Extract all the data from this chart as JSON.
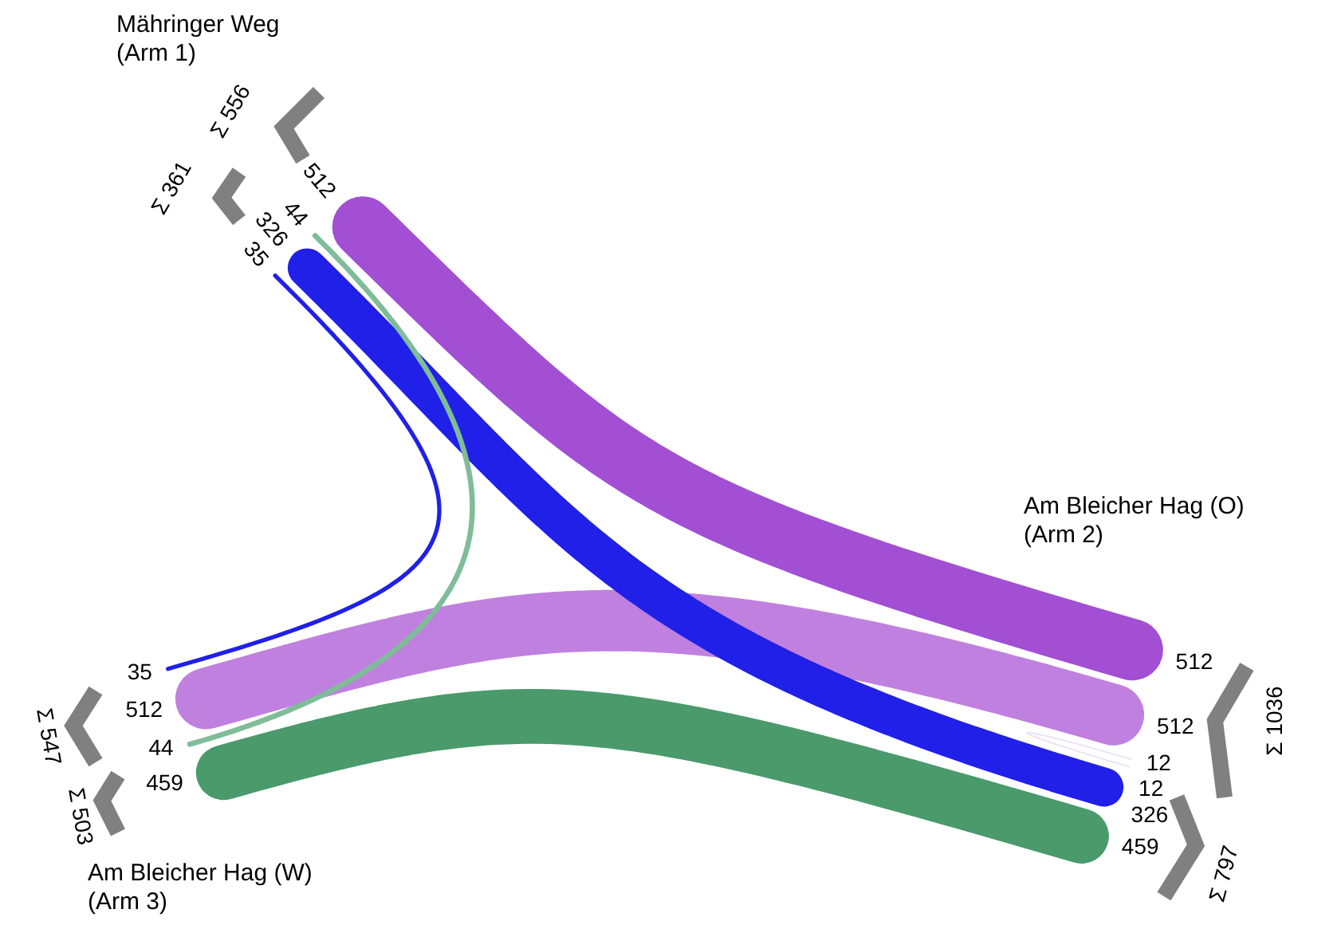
{
  "chart_data": {
    "type": "other",
    "categories": [
      "Mähringer Weg\n(Arm 1)",
      "Am Bleicher Hag (O)\n(Arm 2)",
      "Am Bleicher Hag (W)\n(Arm 3)"
    ],
    "series": [
      {
        "values": [
          null,
          512,
          44
        ],
        "colors": [
          null,
          "#a24fd4",
          "#7fbd98"
        ]
      },
      {
        "values": [
          326,
          12,
          459
        ],
        "colors": [
          "#2020e8",
          "#ecdff5",
          "#4a9a6b"
        ]
      },
      {
        "values": [
          35,
          512,
          null
        ],
        "colors": [
          "#2020e8",
          "#c080e0",
          null
        ]
      }
    ],
    "data_labels": true,
    "annotations": [
      "Σ 556",
      "Σ 361",
      "Σ 1036",
      "Σ 797",
      "Σ 547",
      "Σ 503",
      "512",
      "44",
      "326",
      "12",
      "459",
      "35",
      "512"
    ]
  }
}
